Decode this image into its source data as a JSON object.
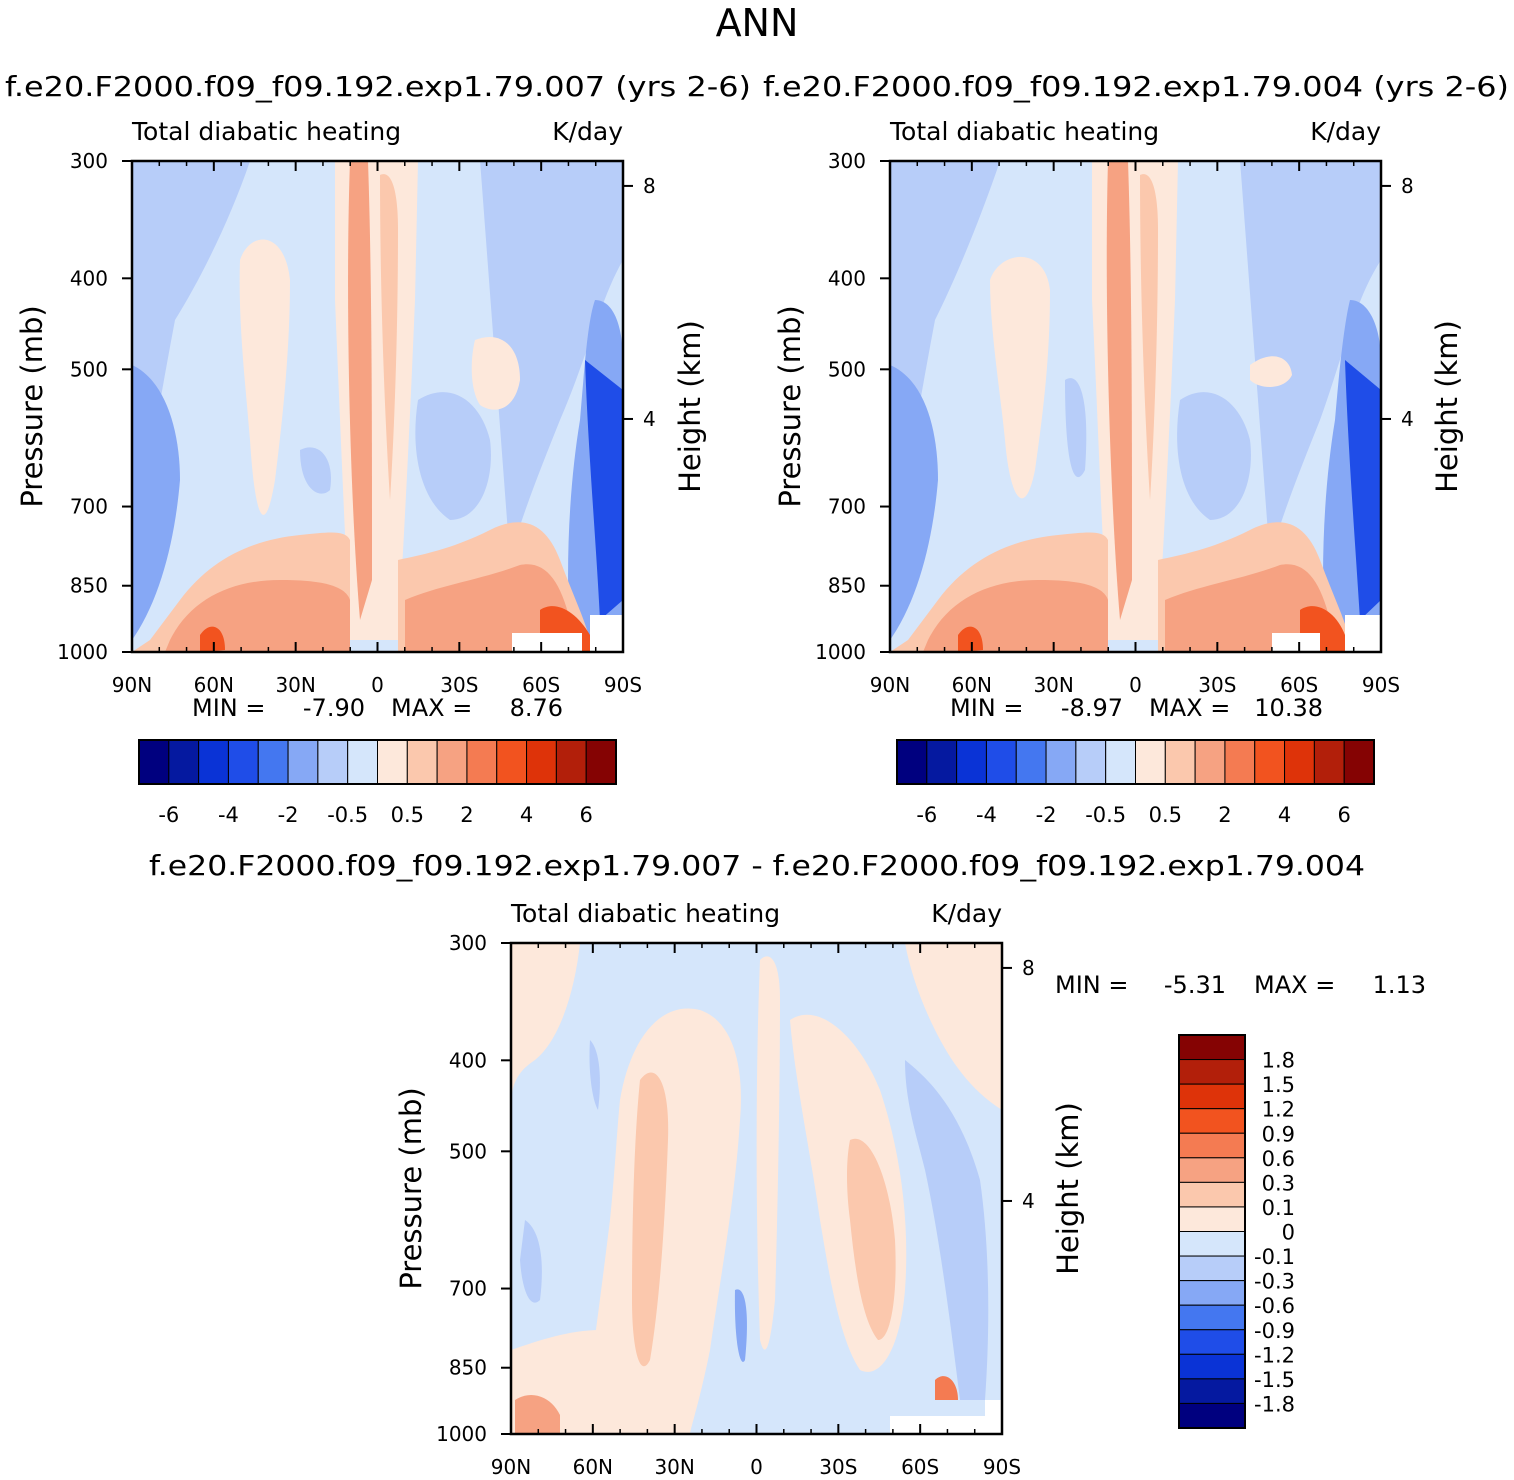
{
  "title": "ANN",
  "colors": {
    "heat_scale": [
      "#00007f",
      "#0519a0",
      "#0a33d6",
      "#1f4de8",
      "#4477f0",
      "#86a8f5",
      "#b7cdf9",
      "#d5e6fb",
      "#fde8db",
      "#fbc8ad",
      "#f6a282",
      "#f47b52",
      "#f2531f",
      "#de3309",
      "#b21f0a",
      "#850303"
    ],
    "diff_scale": [
      "#00007f",
      "#0519a0",
      "#0a33d6",
      "#1f4de8",
      "#4477f0",
      "#86a8f5",
      "#b7cdf9",
      "#d5e6fb",
      "#fde8db",
      "#fbc8ad",
      "#f6a282",
      "#f47b52",
      "#f2531f",
      "#de3309",
      "#b21f0a",
      "#850303"
    ]
  },
  "chart_data": [
    {
      "type": "heatmap",
      "panel": "left",
      "case_title": "f.e20.F2000.f09_f09.192.exp1.79.007 (yrs 2-6)",
      "left_label": "Total diabatic heating",
      "right_label": "K/day",
      "ylabel": "Pressure (mb)",
      "ylabel_right": "Height (km)",
      "x_ticks": [
        "90N",
        "60N",
        "30N",
        "0",
        "30S",
        "60S",
        "90S"
      ],
      "x_values": [
        90,
        60,
        30,
        0,
        -30,
        -60,
        -90
      ],
      "y_ticks": [
        "300",
        "400",
        "500",
        "700",
        "850",
        "1000"
      ],
      "y_values": [
        300,
        400,
        500,
        700,
        850,
        1000
      ],
      "y_right_ticks": [
        "8",
        "4"
      ],
      "y_right_values": [
        8,
        4
      ],
      "min_label": "MIN =",
      "min_value": "-7.90",
      "max_label": "MAX =",
      "max_value": "8.76",
      "colorbar_labels": [
        "-6",
        "-4",
        "-2",
        "-0.5",
        "0.5",
        "2",
        "4",
        "6"
      ],
      "colorbar_levels": [
        -7,
        -6,
        -5,
        -4,
        -3,
        -2,
        -1,
        -0.5,
        0,
        0.5,
        1,
        2,
        3,
        4,
        5,
        6,
        7
      ]
    },
    {
      "type": "heatmap",
      "panel": "right",
      "case_title": "f.e20.F2000.f09_f09.192.exp1.79.004 (yrs 2-6)",
      "left_label": "Total diabatic heating",
      "right_label": "K/day",
      "ylabel": "Pressure (mb)",
      "ylabel_right": "Height (km)",
      "x_ticks": [
        "90N",
        "60N",
        "30N",
        "0",
        "30S",
        "60S",
        "90S"
      ],
      "x_values": [
        90,
        60,
        30,
        0,
        -30,
        -60,
        -90
      ],
      "y_ticks": [
        "300",
        "400",
        "500",
        "700",
        "850",
        "1000"
      ],
      "y_values": [
        300,
        400,
        500,
        700,
        850,
        1000
      ],
      "y_right_ticks": [
        "8",
        "4"
      ],
      "y_right_values": [
        8,
        4
      ],
      "min_label": "MIN =",
      "min_value": "-8.97",
      "max_label": "MAX =",
      "max_value": "10.38",
      "colorbar_labels": [
        "-6",
        "-4",
        "-2",
        "-0.5",
        "0.5",
        "2",
        "4",
        "6"
      ],
      "colorbar_levels": [
        -7,
        -6,
        -5,
        -4,
        -3,
        -2,
        -1,
        -0.5,
        0,
        0.5,
        1,
        2,
        3,
        4,
        5,
        6,
        7
      ]
    },
    {
      "type": "heatmap",
      "panel": "difference",
      "case_title": "f.e20.F2000.f09_f09.192.exp1.79.007 - f.e20.F2000.f09_f09.192.exp1.79.004",
      "left_label": "Total diabatic heating",
      "right_label": "K/day",
      "ylabel": "Pressure (mb)",
      "ylabel_right": "Height (km)",
      "x_ticks": [
        "90N",
        "60N",
        "30N",
        "0",
        "30S",
        "60S",
        "90S"
      ],
      "x_values": [
        90,
        60,
        30,
        0,
        -30,
        -60,
        -90
      ],
      "y_ticks": [
        "300",
        "400",
        "500",
        "700",
        "850",
        "1000"
      ],
      "y_values": [
        300,
        400,
        500,
        700,
        850,
        1000
      ],
      "y_right_ticks": [
        "8",
        "4"
      ],
      "y_right_values": [
        8,
        4
      ],
      "min_label": "MIN =",
      "min_value": "-5.31",
      "max_label": "MAX =",
      "max_value": "1.13",
      "colorbar_labels": [
        "1.8",
        "1.5",
        "1.2",
        "0.9",
        "0.6",
        "0.3",
        "0.1",
        "0",
        "-0.1",
        "-0.3",
        "-0.6",
        "-0.9",
        "-1.2",
        "-1.5",
        "-1.8"
      ]
    }
  ]
}
